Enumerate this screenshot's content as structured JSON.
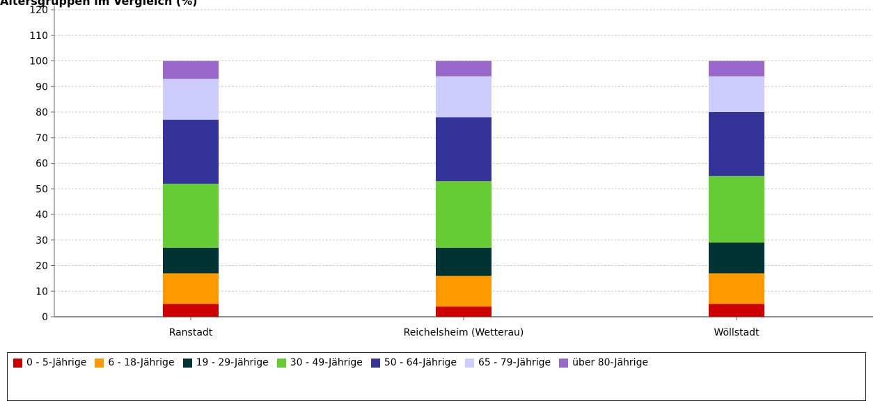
{
  "chart_data": {
    "type": "bar",
    "stacked": true,
    "title": "Altersgruppen im Vergleich (%)",
    "xlabel": "",
    "ylabel": "",
    "ylim": [
      0,
      120
    ],
    "yticks": [
      0,
      10,
      20,
      30,
      40,
      50,
      60,
      70,
      80,
      90,
      100,
      110,
      120
    ],
    "grid": true,
    "legend_position": "bottom",
    "categories": [
      "Ranstadt",
      "Reichelsheim (Wetterau)",
      "Wöllstadt"
    ],
    "series": [
      {
        "name": "0 - 5-Jährige",
        "color": "#cc0000",
        "values": [
          5,
          4,
          5
        ]
      },
      {
        "name": "6 - 18-Jährige",
        "color": "#ff9900",
        "values": [
          12,
          12,
          12
        ]
      },
      {
        "name": "19 - 29-Jährige",
        "color": "#003333",
        "values": [
          10,
          11,
          12
        ]
      },
      {
        "name": "30 - 49-Jährige",
        "color": "#66cc33",
        "values": [
          25,
          26,
          26
        ]
      },
      {
        "name": "50 - 64-Jährige",
        "color": "#333399",
        "values": [
          25,
          25,
          25
        ]
      },
      {
        "name": "65 - 79-Jährige",
        "color": "#ccccff",
        "values": [
          16,
          16,
          14
        ]
      },
      {
        "name": "über 80-Jährige",
        "color": "#9966cc",
        "values": [
          7,
          6,
          6
        ]
      }
    ]
  }
}
